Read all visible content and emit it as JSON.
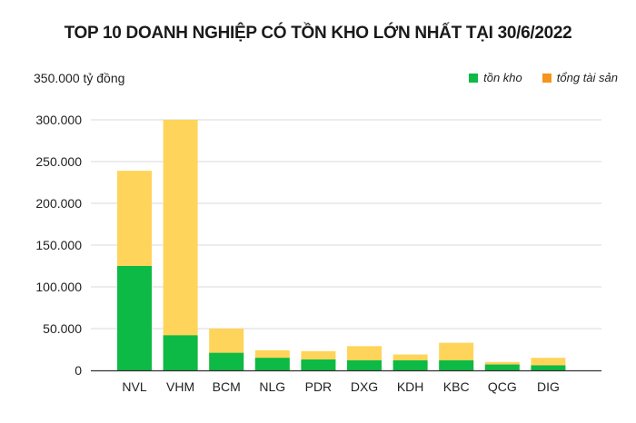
{
  "chart_data": {
    "type": "bar",
    "stacked": true,
    "title": "TOP 10 DOANH NGHIỆP CÓ TỒN KHO LỚN NHẤT TẠI 30/6/2022",
    "ylabel": "350.000 tỷ đồng",
    "ylim": [
      0,
      350000
    ],
    "yticks": [
      "0",
      "50.000",
      "100.000",
      "150.000",
      "200.000",
      "250.000",
      "300.000"
    ],
    "grid": true,
    "legend_position": "top-right",
    "categories": [
      "NVL",
      "VHM",
      "BCM",
      "NLG",
      "PDR",
      "DXG",
      "KDH",
      "KBC",
      "QCG",
      "DIG"
    ],
    "series": [
      {
        "name": "tồn kho",
        "color": "#0dba45",
        "values": [
          125000,
          42000,
          21000,
          15000,
          13000,
          12000,
          12000,
          12000,
          7000,
          6000
        ]
      },
      {
        "name": "tổng tài sản",
        "color": "#ffd45a",
        "legend_color": "#f7941d",
        "values": [
          239000,
          300000,
          50000,
          24000,
          23000,
          29000,
          19000,
          33000,
          10000,
          15000
        ]
      }
    ]
  }
}
